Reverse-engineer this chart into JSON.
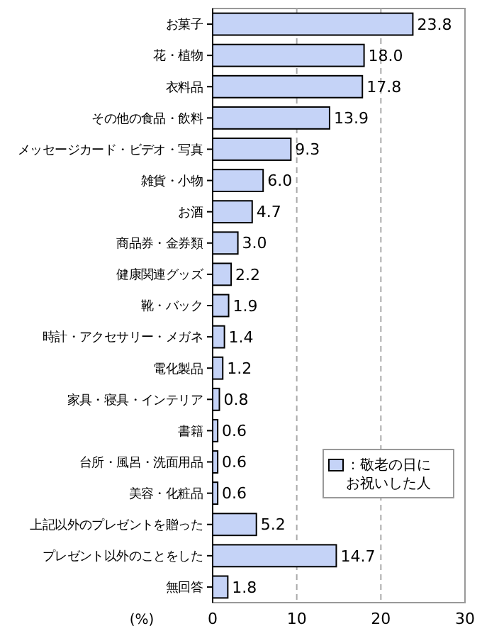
{
  "chart_data": {
    "type": "bar",
    "orientation": "horizontal",
    "categories": [
      "お菓子",
      "花・植物",
      "衣料品",
      "その他の食品・飲料",
      "メッセージカード・ビデオ・写真",
      "雑貨・小物",
      "お酒",
      "商品券・金券類",
      "健康関連グッズ",
      "靴・バック",
      "時計・アクセサリー・メガネ",
      "電化製品",
      "家具・寝具・インテリア",
      "書籍",
      "台所・風呂・洗面用品",
      "美容・化粧品",
      "上記以外のプレゼントを贈った",
      "プレゼント以外のことをした",
      "無回答"
    ],
    "series": [
      {
        "name": "：敬老の日にお祝いした人",
        "color": "#c5d3f7",
        "values": [
          23.8,
          18.0,
          17.8,
          13.9,
          9.3,
          6.0,
          4.7,
          3.0,
          2.2,
          1.9,
          1.4,
          1.2,
          0.8,
          0.6,
          0.6,
          0.6,
          5.2,
          14.7,
          1.8
        ],
        "value_labels": [
          "23.8",
          "18.0",
          "17.8",
          "13.9",
          "9.3",
          "6.0",
          "4.7",
          "3.0",
          "2.2",
          "1.9",
          "1.4",
          "1.2",
          "0.8",
          "0.6",
          "0.6",
          "0.6",
          "5.2",
          "14.7",
          "1.8"
        ]
      }
    ],
    "xlabel": "(%)",
    "xlim": [
      0,
      30
    ],
    "xticks": [
      0,
      10,
      20,
      30
    ],
    "grid": "x",
    "legend": "bottom right"
  }
}
